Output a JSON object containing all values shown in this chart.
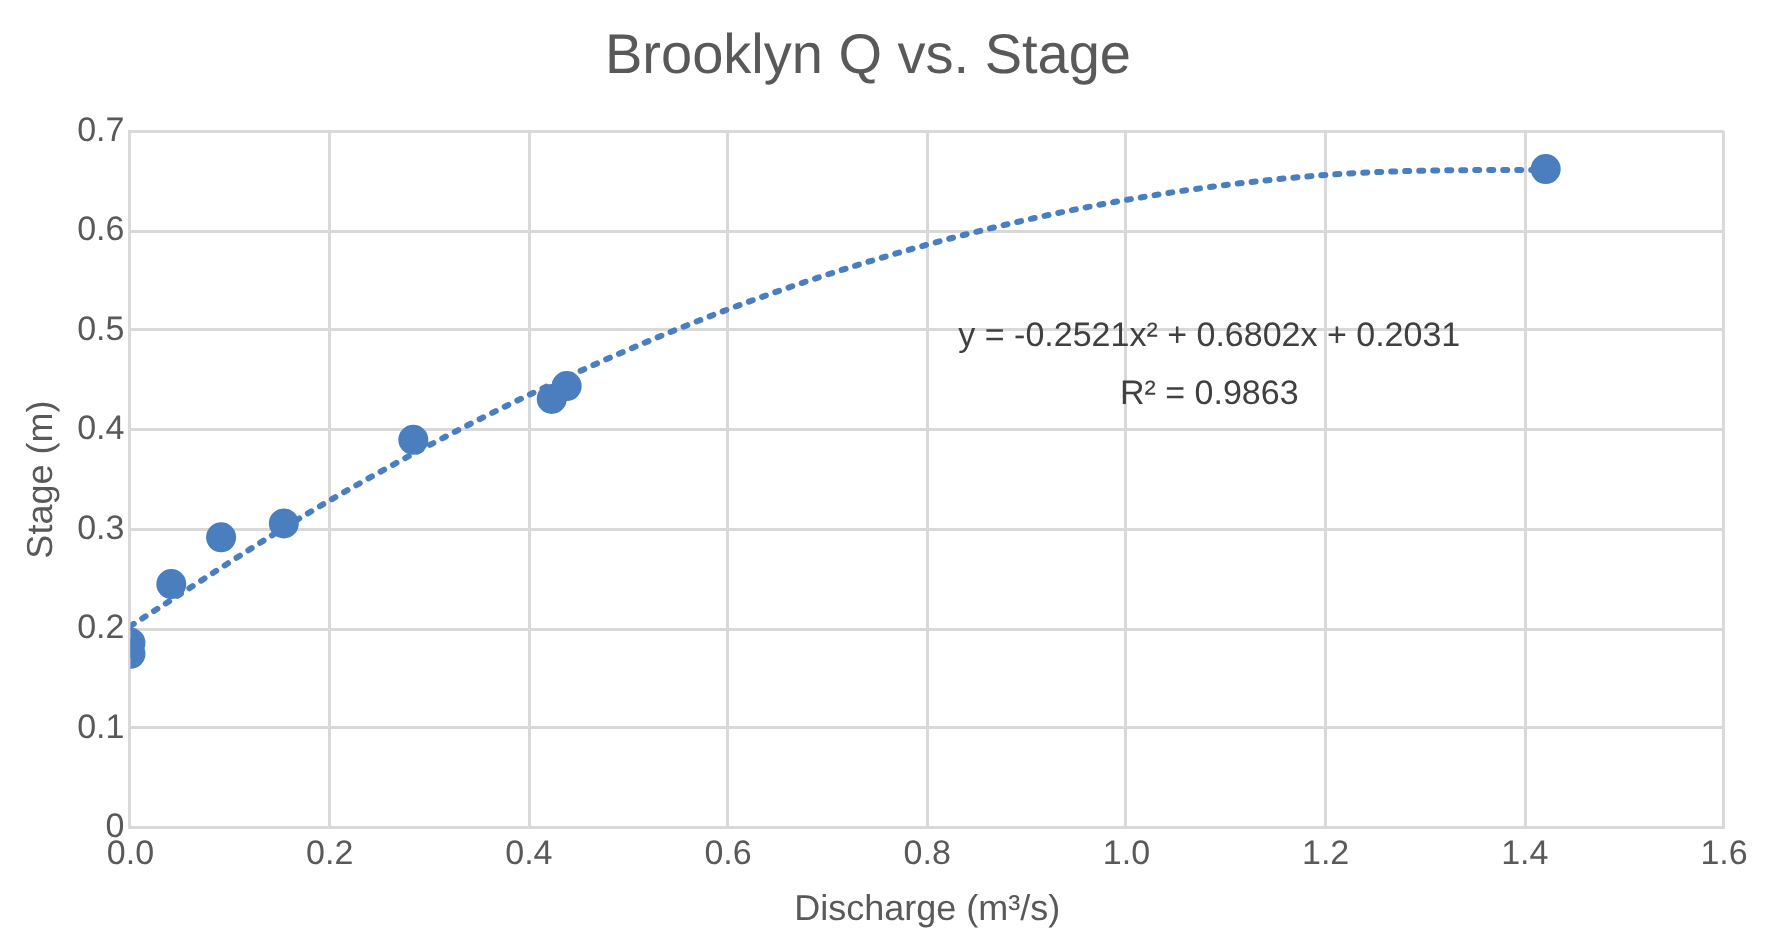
{
  "chart_data": {
    "type": "scatter",
    "title": "Brooklyn Q vs. Stage",
    "xlabel": "Discharge (m³/s)",
    "ylabel": "Stage (m)",
    "series": [
      {
        "type": "scatter",
        "color": "#4a7ebf",
        "marker": "circle",
        "x": [
          0.0,
          0.0,
          0.041,
          0.091,
          0.154,
          0.284,
          0.423,
          0.438,
          1.421
        ],
        "values": [
          0.186,
          0.175,
          0.245,
          0.292,
          0.306,
          0.39,
          0.431,
          0.444,
          0.662
        ]
      },
      {
        "type": "line",
        "color": "#4a7ebf",
        "marker": "none",
        "line_style": "dotted",
        "x": [
          0,
          0.2,
          0.4,
          0.6,
          0.8,
          1.0,
          1.2,
          1.4,
          1.421
        ],
        "values": [
          0.203,
          0.329,
          0.435,
          0.521,
          0.586,
          0.631,
          0.656,
          0.661,
          0.661
        ]
      }
    ],
    "annotations": [
      "y = -0.2521x² + 0.6802x + 0.2031",
      "R² = 0.9863"
    ],
    "xlim": [
      0,
      1.6
    ],
    "xticks": [
      {
        "value": 0,
        "label": "0.0"
      },
      0.2,
      0.4,
      0.6,
      0.8,
      {
        "value": 1,
        "label": "1.0"
      },
      1.2,
      1.4,
      1.6
    ],
    "ylim": [
      0,
      0.7
    ],
    "yticks": [
      0,
      0.1,
      0.2,
      0.3,
      0.4,
      0.5,
      0.6,
      0.7
    ],
    "grid": true,
    "legend": false
  }
}
